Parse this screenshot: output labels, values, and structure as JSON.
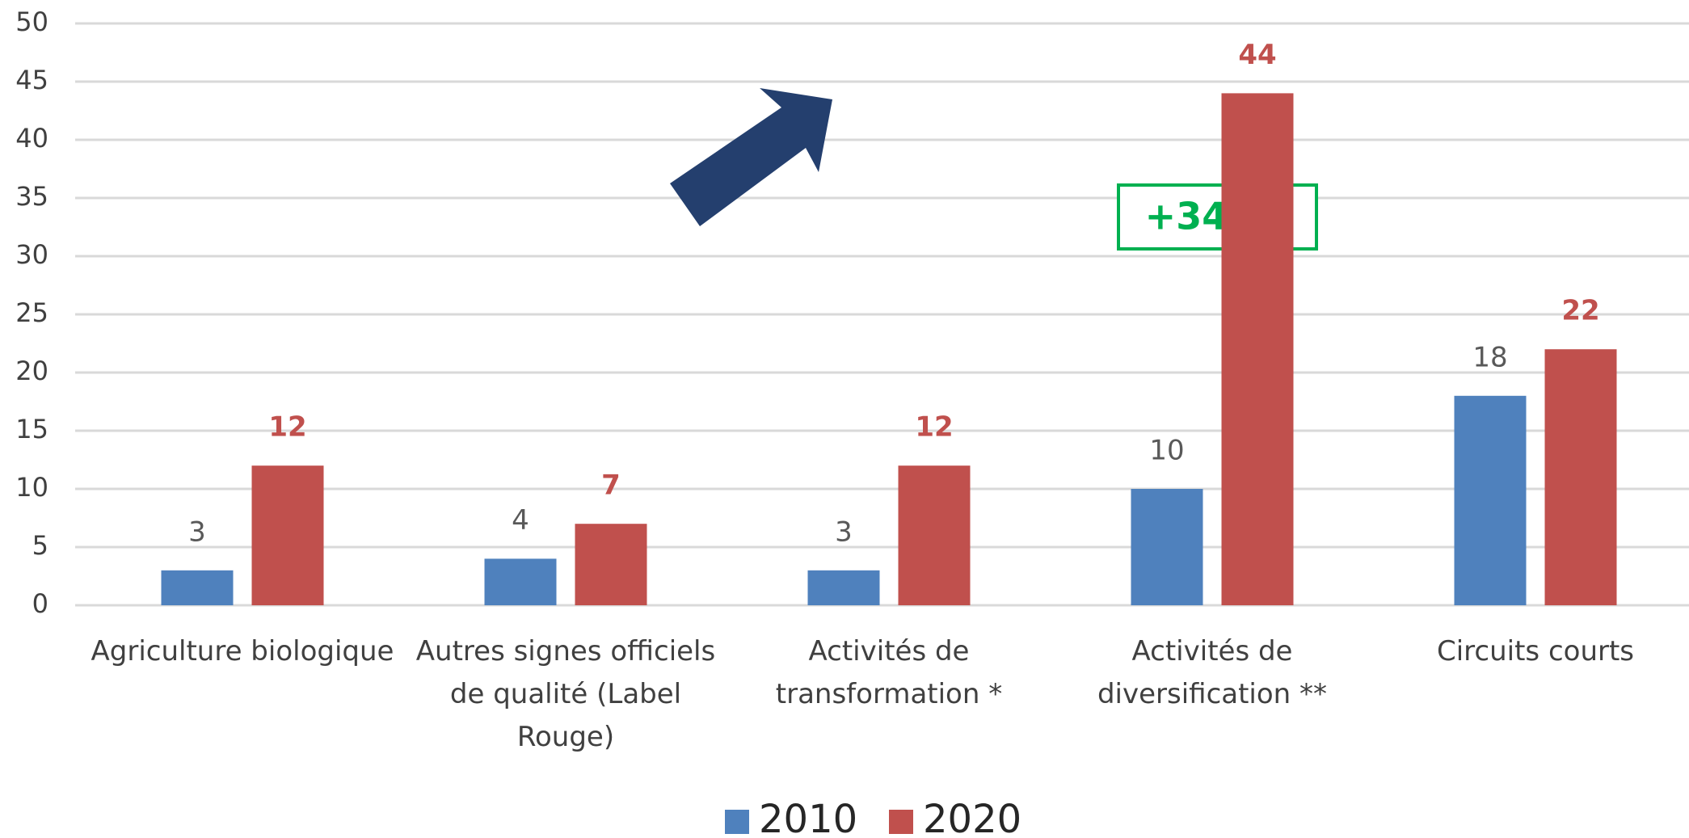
{
  "chart_data": {
    "type": "bar",
    "categories": [
      "Agriculture biologique",
      "Autres signes officiels de qualité (Label Rouge)",
      "Activités de transformation *",
      "Activités de diversification **",
      "Circuits courts"
    ],
    "series": [
      {
        "name": "2010",
        "color": "#4f81bd",
        "values": [
          3,
          4,
          3,
          10,
          18
        ]
      },
      {
        "name": "2020",
        "color": "#c0504d",
        "values": [
          12,
          7,
          12,
          44,
          22
        ]
      }
    ],
    "ylim": [
      0,
      50
    ],
    "yticks": [
      0,
      5,
      10,
      15,
      20,
      25,
      30,
      35,
      40,
      45,
      50
    ],
    "grid": true,
    "legend": "bottom",
    "annotations": [
      "+340%"
    ]
  }
}
